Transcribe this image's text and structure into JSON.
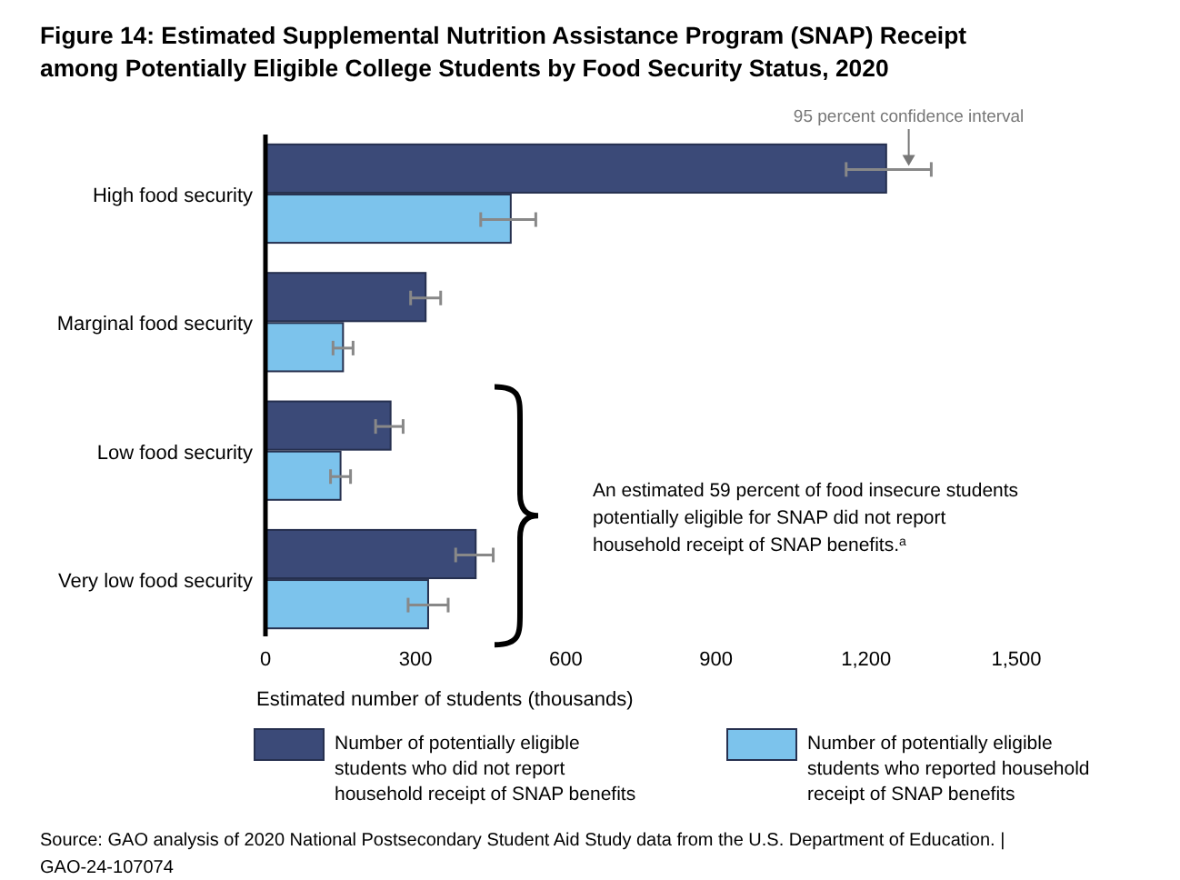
{
  "chart_data": {
    "type": "bar",
    "orientation": "horizontal",
    "title": "Figure 14: Estimated Supplemental Nutrition Assistance Program (SNAP) Receipt among Potentially Eligible College Students by Food Security Status, 2020",
    "categories": [
      "High food security",
      "Marginal food security",
      "Low food security",
      "Very low food security"
    ],
    "series": [
      {
        "name": "Number of potentially eligible students who did not report household receipt of SNAP benefits",
        "color": "#3b4a78",
        "values": [
          1240,
          320,
          250,
          420
        ],
        "errors": [
          [
            1160,
            1330
          ],
          [
            290,
            350
          ],
          [
            220,
            275
          ],
          [
            380,
            455
          ]
        ]
      },
      {
        "name": "Number of potentially eligible students who reported household receipt of SNAP benefits",
        "color": "#7cc3ec",
        "values": [
          490,
          155,
          150,
          325
        ],
        "errors": [
          [
            430,
            540
          ],
          [
            135,
            175
          ],
          [
            130,
            170
          ],
          [
            285,
            365
          ]
        ]
      }
    ],
    "xlabel": "Estimated number of students (thousands)",
    "xlim": [
      0,
      1500
    ],
    "xticks": [
      0,
      300,
      600,
      900,
      {
        "value": 1200,
        "label": "1,200"
      },
      {
        "value": 1500,
        "label": "1,500"
      }
    ],
    "grid": false,
    "legend": "bottom",
    "annotations": [
      "95 percent confidence interval",
      "An estimated 59 percent of food insecure students potentially eligible for SNAP did not report household receipt of SNAP benefits.$^{a}$",
      "Source: GAO analysis of 2020 National Postsecondary Student Aid Study data from the U.S. Department of Education.  | GAO-24-107074"
    ]
  }
}
